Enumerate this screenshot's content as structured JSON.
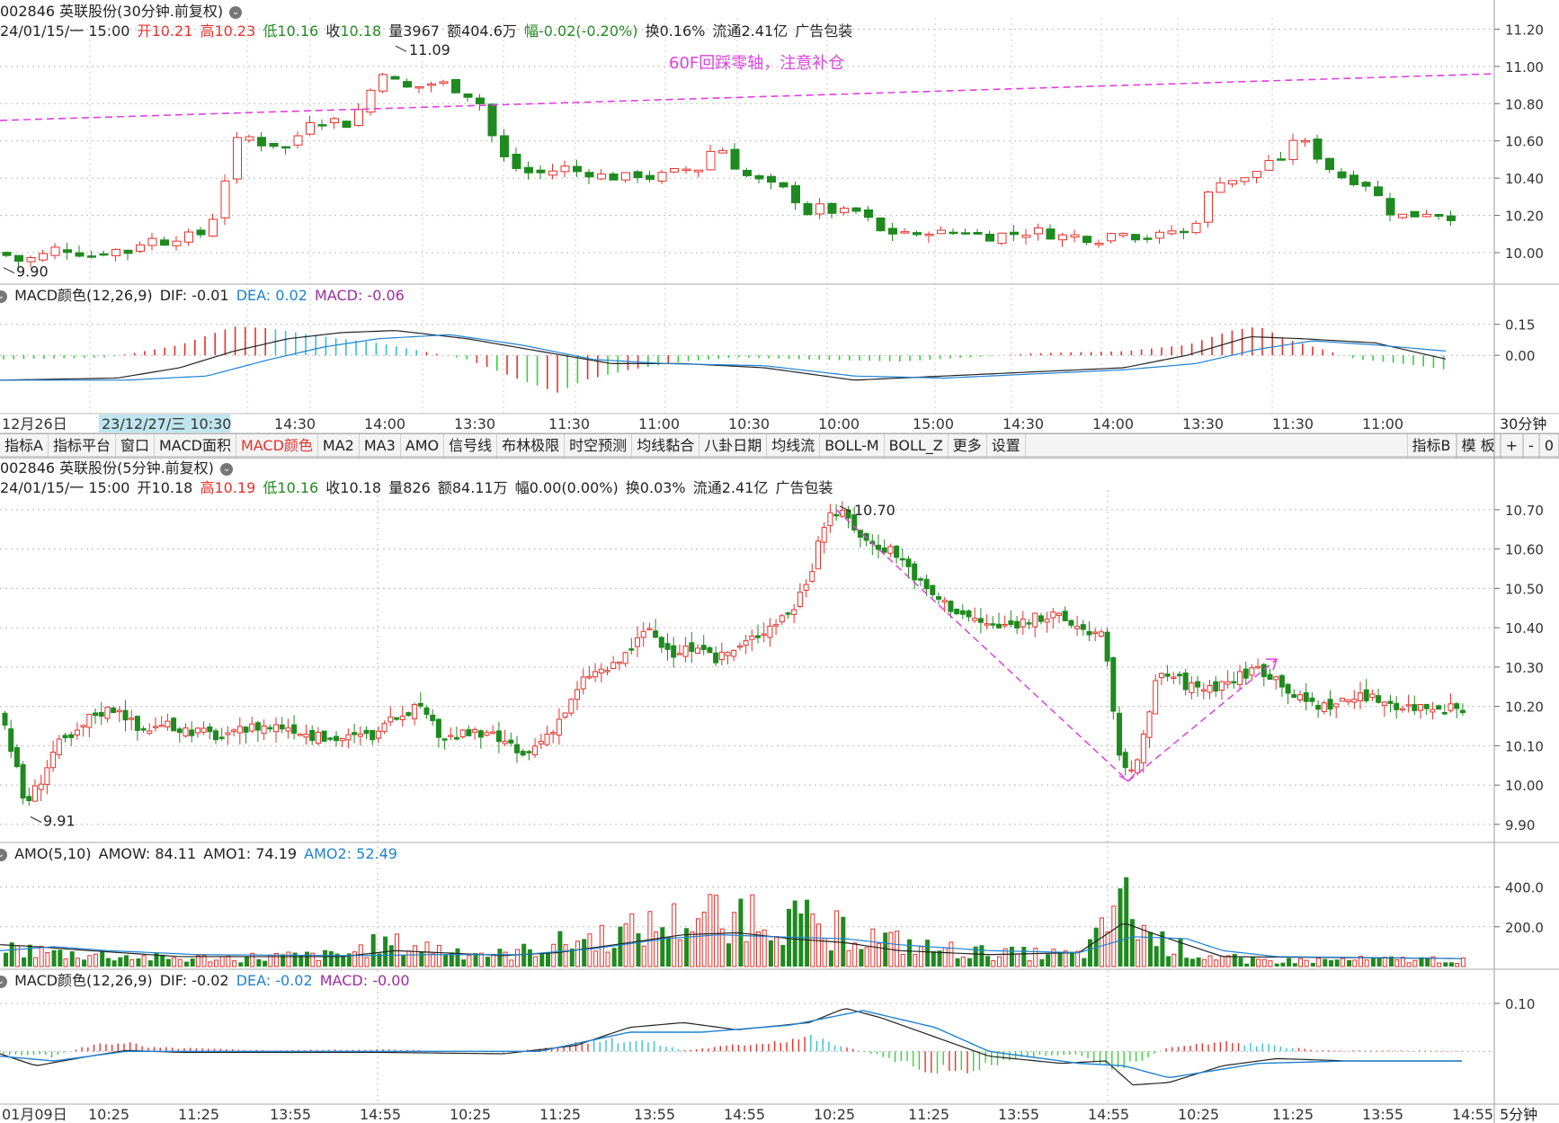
{
  "top": {
    "title": "002846 英联股份(30分钟.前复权)",
    "info": {
      "date": "24/01/15/一 15:00",
      "open_l": "开",
      "open": "10.21",
      "high_l": "高",
      "high": "10.23",
      "low_l": "低",
      "low": "10.16",
      "close_l": "收",
      "close": "10.18",
      "vol": "量3967",
      "amt": "额404.6万",
      "chg": "幅-0.02(-0.20%)",
      "turn": "换0.16%",
      "float": "流通2.41亿",
      "sector": "广告包装"
    },
    "annotation": "60F回踩零轴，注意补仓",
    "high_mark": "11.09",
    "low_mark": "9.90",
    "yticks": [
      "11.20",
      "11.00",
      "10.80",
      "10.60",
      "10.40",
      "10.20",
      "10.00"
    ],
    "macd_header": {
      "name": "MACD颜色(12,26,9)",
      "dif": "DIF: -0.01",
      "dea": "DEA: 0.02",
      "macd": "MACD: -0.06"
    },
    "macd_yticks": [
      "0.15",
      "0.00"
    ],
    "xlabels": [
      "12月26日",
      "23/12/27/三 10:30",
      "14:30",
      "14:00",
      "13:30",
      "11:30",
      "11:00",
      "10:30",
      "10:00",
      "15:00",
      "14:30",
      "14:00",
      "13:30",
      "11:30",
      "11:00"
    ],
    "period": "30分钟"
  },
  "toolbar": {
    "items": [
      "指标A",
      "指标平台",
      "窗口",
      "MACD面积",
      "MACD颜色",
      "MA2",
      "MA3",
      "AMO",
      "信号线",
      "布林极限",
      "时空预测",
      "均线黏合",
      "八卦日期",
      "均线流",
      "BOLL-M",
      "BOLL_Z",
      "更多",
      "设置"
    ],
    "active": "MACD颜色",
    "right_items": [
      "指标B",
      "模 板",
      "+",
      "-",
      "0"
    ]
  },
  "bottom": {
    "title": "002846 英联股份(5分钟.前复权)",
    "info": {
      "date": "24/01/15/一 15:00",
      "open": "开10.18",
      "high_l": "高",
      "high": "10.19",
      "low_l": "低",
      "low": "10.16",
      "close": "收10.18",
      "vol": "量826",
      "amt": "额84.11万",
      "chg": "幅0.00(0.00%)",
      "turn": "换0.03%",
      "float": "流通2.41亿",
      "sector": "广告包装"
    },
    "high_mark": "10.70",
    "low_mark": "9.91",
    "yticks": [
      "10.70",
      "10.60",
      "10.50",
      "10.40",
      "10.30",
      "10.20",
      "10.10",
      "10.00",
      "9.90"
    ],
    "amo_header": {
      "name": "AMO(5,10)",
      "amow": "AMOW: 84.11",
      "amo1": "AMO1: 74.19",
      "amo2": "AMO2: 52.49"
    },
    "amo_yticks": [
      "400.0",
      "200.0"
    ],
    "macd_header": {
      "name": "MACD颜色(12,26,9)",
      "dif": "DIF: -0.02",
      "dea": "DEA: -0.02",
      "macd": "MACD: -0.00"
    },
    "macd_yticks": [
      "0.10"
    ],
    "xlabels": [
      "01月09日",
      "10:25",
      "11:25",
      "13:55",
      "14:55",
      "10:25",
      "11:25",
      "13:55",
      "14:55",
      "10:25",
      "11:25",
      "13:55",
      "14:55",
      "10:25",
      "11:25",
      "13:55",
      "14:55"
    ],
    "period": "5分钟"
  },
  "colors": {
    "up": "#e8302a",
    "down": "#1f8a1f",
    "dif": "#222222",
    "dea": "#1e82d2",
    "annot": "#e040e0"
  }
}
